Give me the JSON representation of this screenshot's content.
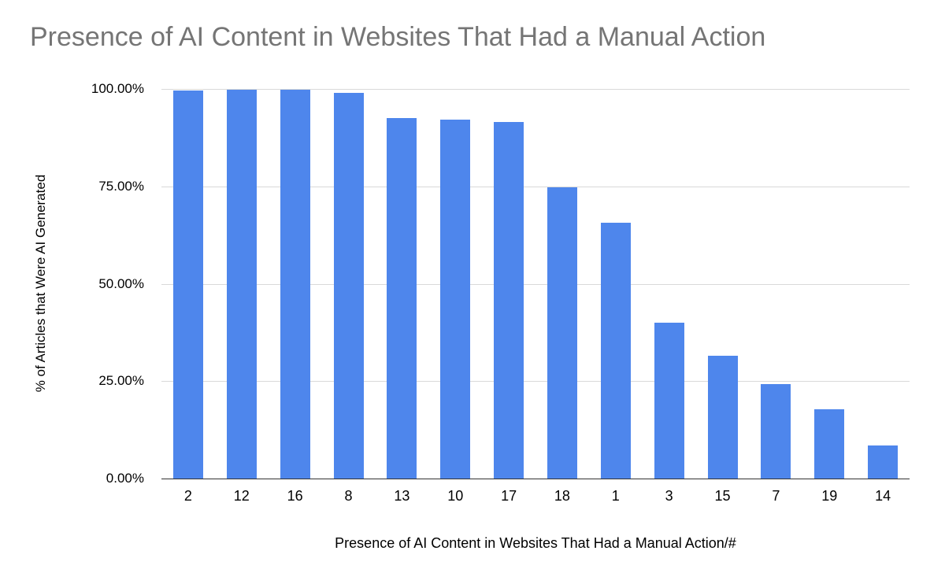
{
  "title": "Presence of AI Content in Websites That Had a Manual Action",
  "chart_data": {
    "type": "bar",
    "title": "Presence of AI Content in Websites That Had a Manual Action",
    "xlabel": "Presence of AI Content in Websites That Had a Manual Action/#",
    "ylabel": "% of Articles that Were AI Generated",
    "categories": [
      "2",
      "12",
      "16",
      "8",
      "13",
      "10",
      "17",
      "18",
      "1",
      "3",
      "15",
      "7",
      "19",
      "14"
    ],
    "values": [
      99.6,
      99.8,
      99.8,
      98.9,
      92.6,
      92.2,
      91.6,
      74.7,
      65.7,
      40.0,
      31.6,
      24.3,
      17.7,
      8.5
    ],
    "ylim": [
      0,
      100
    ],
    "yticks": [
      "100.00%",
      "75.00%",
      "50.00%",
      "25.00%",
      "0.00%"
    ],
    "grid": true,
    "legend": "none",
    "bar_color": "#4e86ec",
    "gridline_color": "#d9d9d9",
    "axis_color": "#333333",
    "title_color": "#757575"
  }
}
